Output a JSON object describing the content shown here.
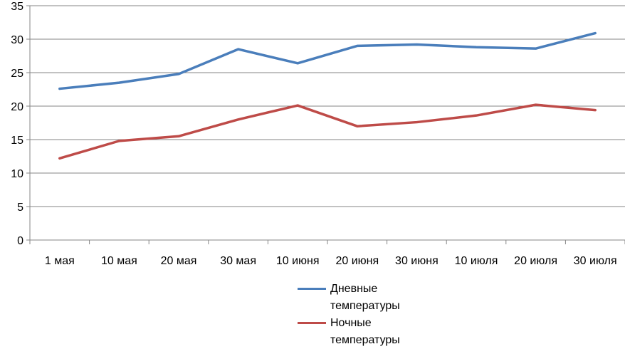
{
  "chart_data": {
    "type": "line",
    "categories": [
      "1 мая",
      "10 мая",
      "20 мая",
      "30 мая",
      "10 июня",
      "20 июня",
      "30 июня",
      "10 июля",
      "20 июля",
      "30 июля"
    ],
    "series": [
      {
        "name": "Дневные температуры",
        "color": "#4a7ebb",
        "values": [
          22.6,
          23.5,
          24.8,
          28.5,
          26.4,
          29.0,
          29.2,
          28.8,
          28.6,
          30.9
        ]
      },
      {
        "name": "Ночные температуры",
        "color": "#be4b48",
        "values": [
          12.2,
          14.8,
          15.5,
          18.0,
          20.1,
          17.0,
          17.6,
          18.6,
          20.2,
          19.4
        ]
      }
    ],
    "ylim": [
      0,
      35
    ],
    "yticks": [
      0,
      5,
      10,
      15,
      20,
      25,
      30,
      35
    ],
    "grid": true,
    "legend_position": "bottom"
  }
}
